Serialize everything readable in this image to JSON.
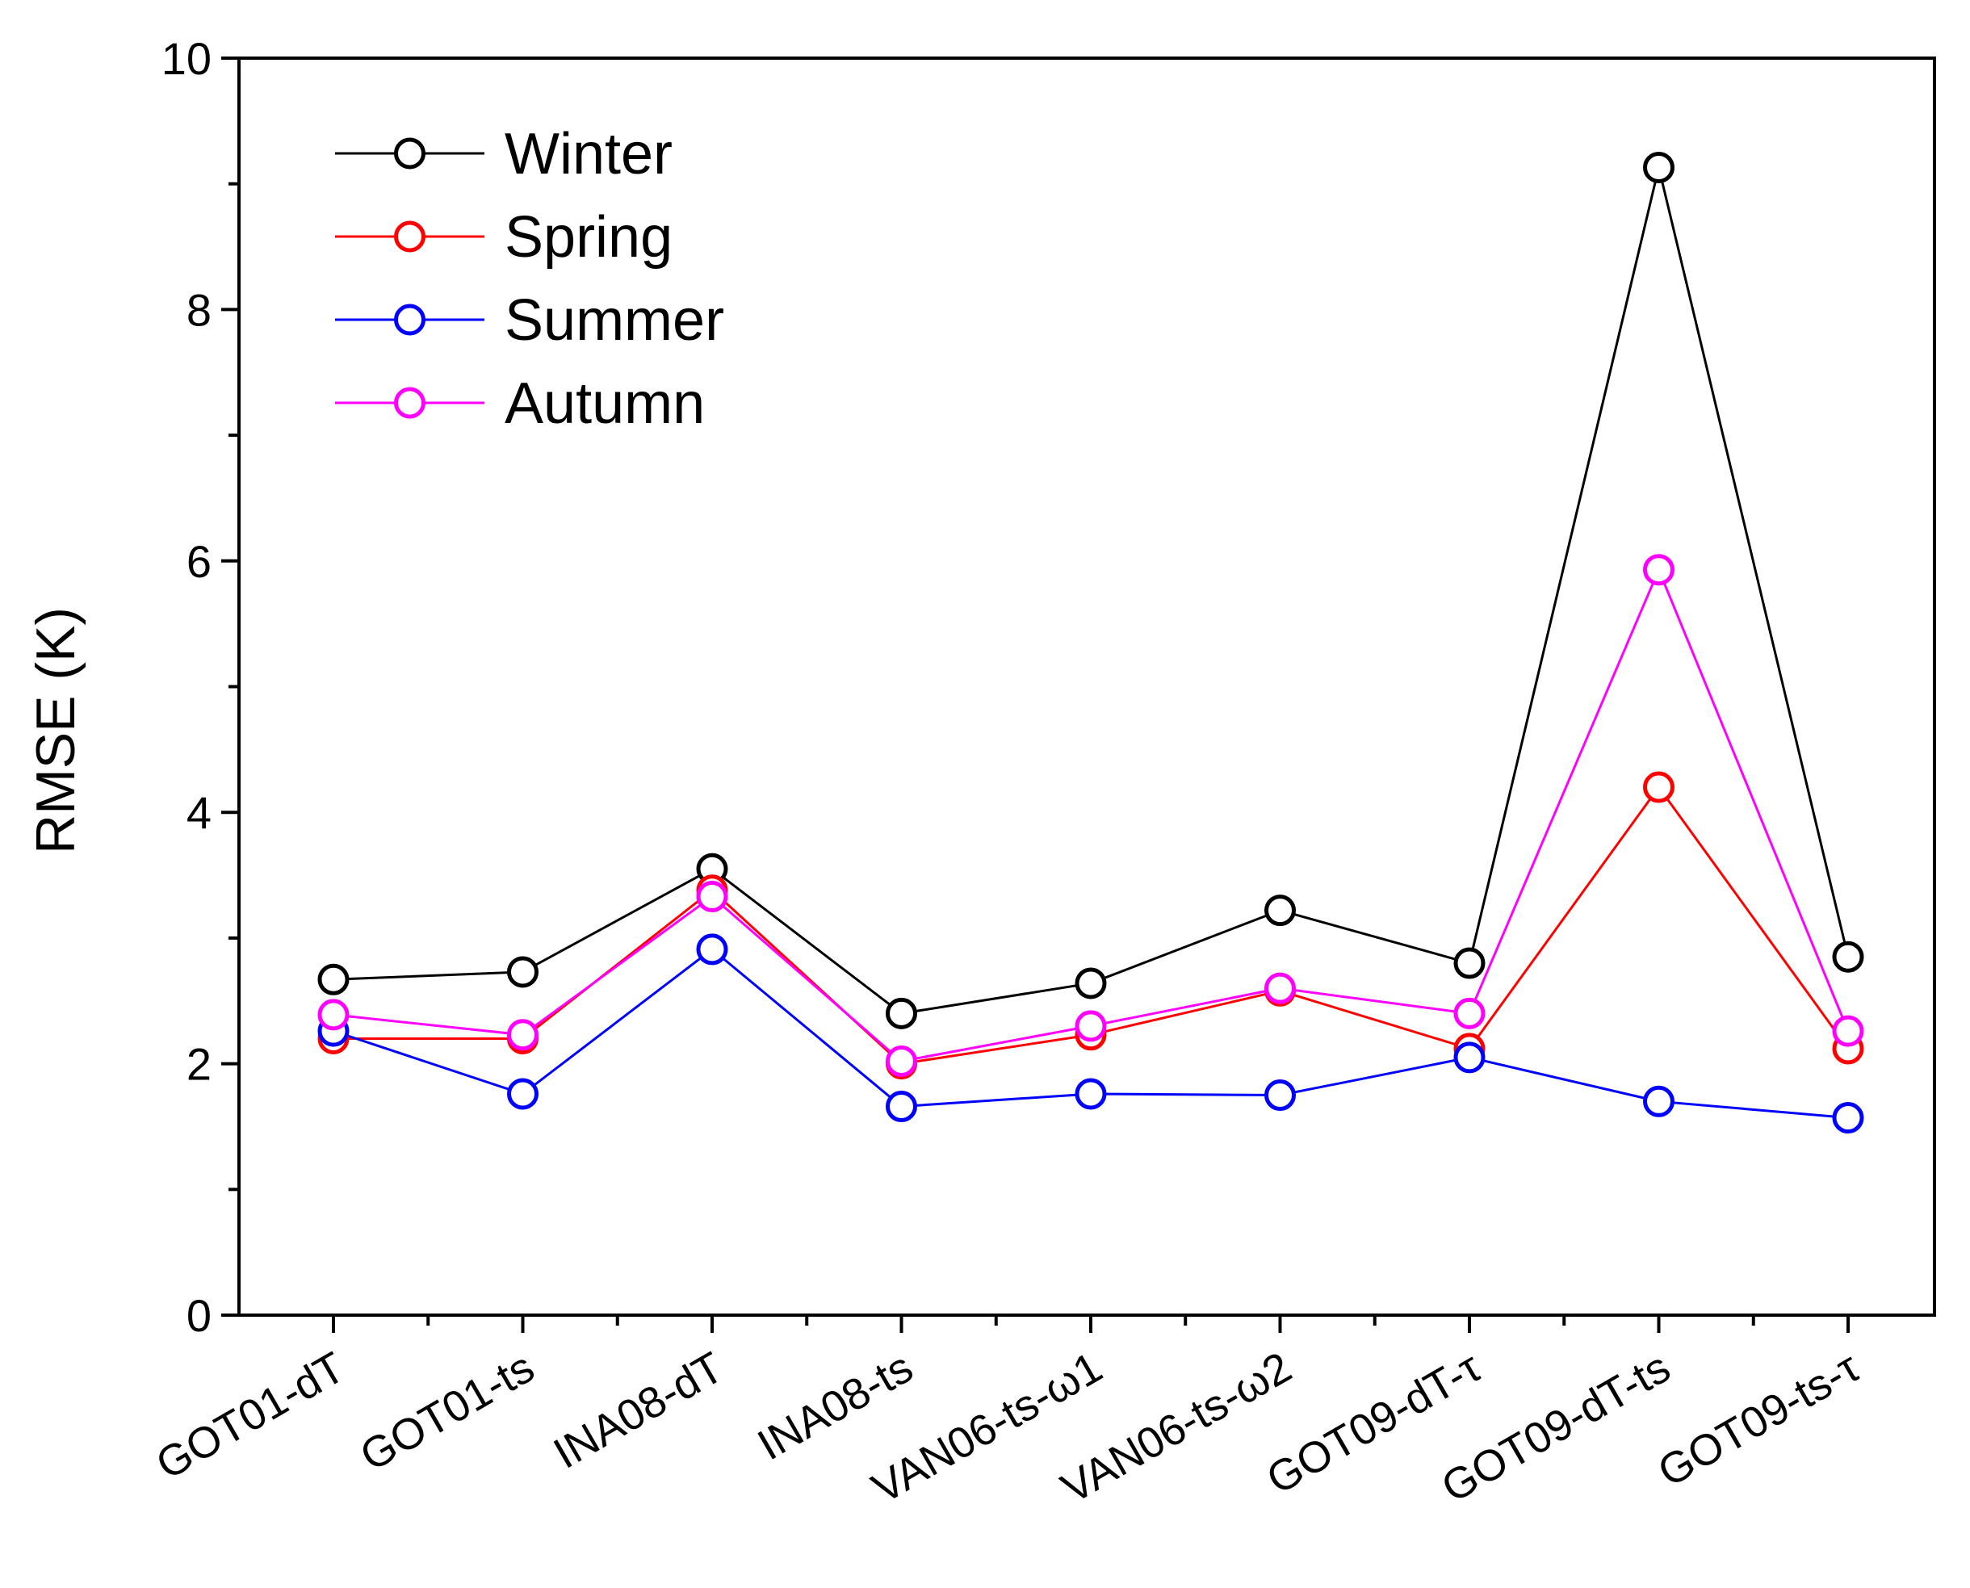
{
  "chart_data": {
    "type": "line",
    "title": "",
    "xlabel": "",
    "ylabel": "RMSE (K)",
    "ylim": [
      0,
      10
    ],
    "yticks": [
      "0",
      "2",
      "4",
      "6",
      "8",
      "10"
    ],
    "categories": [
      "GOT01-dT",
      "GOT01-ts",
      "INA08-dT",
      "INA08-ts",
      "VAN06-ts-ω1",
      "VAN06-ts-ω2",
      "GOT09-dT-τ",
      "GOT09-dT-ts",
      "GOT09-ts-τ"
    ],
    "legend_position": "top-left",
    "series": [
      {
        "name": "Winter",
        "color": "#000000",
        "values": [
          2.67,
          2.73,
          3.55,
          2.4,
          2.64,
          3.22,
          2.8,
          9.13,
          2.85
        ]
      },
      {
        "name": "Spring",
        "color": "#ff0000",
        "values": [
          2.2,
          2.2,
          3.38,
          2.0,
          2.23,
          2.58,
          2.12,
          4.2,
          2.12
        ]
      },
      {
        "name": "Summer",
        "color": "#0000ff",
        "values": [
          2.26,
          1.76,
          2.91,
          1.66,
          1.76,
          1.75,
          2.05,
          1.7,
          1.57
        ]
      },
      {
        "name": "Autumn",
        "color": "#ff00ff",
        "values": [
          2.39,
          2.23,
          3.33,
          2.02,
          2.3,
          2.6,
          2.4,
          5.93,
          2.26
        ]
      }
    ]
  }
}
